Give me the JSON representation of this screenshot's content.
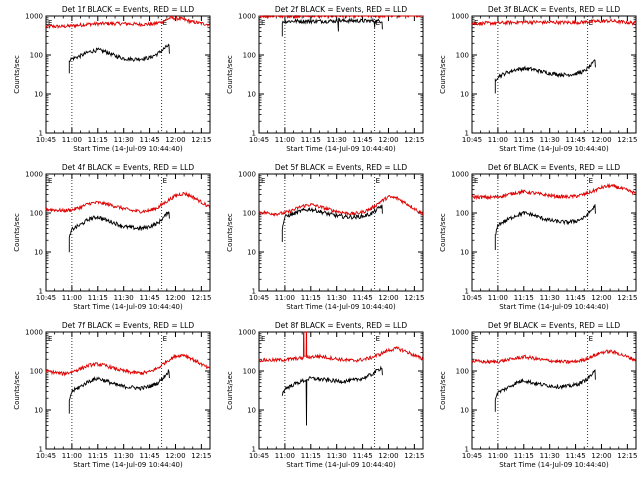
{
  "figure": {
    "colors": {
      "events": "#000000",
      "lld": "#e00000",
      "background": "#ffffff",
      "axes": "#000000"
    },
    "x_tick_labels": [
      "10:45",
      "11:00",
      "11:15",
      "11:30",
      "11:45",
      "12:00",
      "12:15"
    ],
    "y_tick_labels": [
      "1",
      "10",
      "100",
      "1000"
    ],
    "xlabel": "Start Time (14-Jul-09 10:44:40)",
    "ylabel": "Counts/sec",
    "marker_text": "E"
  },
  "chart_data": [
    {
      "type": "line",
      "title": "Det 1f BLACK = Events, RED = LLD",
      "xlabel": "Start Time (14-Jul-09 10:44:40)",
      "ylabel": "Counts/sec",
      "x_range_minutes_from_10_45": [
        0,
        95
      ],
      "y_log": true,
      "ylim": [
        1,
        1000
      ],
      "events_start_min": 13.5,
      "events_end_min": 71.5,
      "marker_lines_min": [
        15,
        67
      ],
      "series": [
        {
          "color": "red",
          "x": [
            0,
            10,
            15,
            25,
            35,
            45,
            55,
            62,
            67,
            72,
            78,
            85,
            95
          ],
          "y": [
            540,
            540,
            560,
            620,
            640,
            640,
            610,
            620,
            700,
            900,
            850,
            700,
            600
          ]
        },
        {
          "color": "black",
          "x": [
            13.5,
            15,
            20,
            25,
            30,
            35,
            40,
            45,
            50,
            55,
            60,
            65,
            70,
            71.5
          ],
          "y": [
            75,
            80,
            95,
            120,
            135,
            120,
            95,
            82,
            78,
            80,
            85,
            110,
            165,
            180
          ]
        }
      ]
    },
    {
      "type": "line",
      "title": "Det 2f BLACK = Events, RED = LLD",
      "xlabel": "Start Time (14-Jul-09 10:44:40)",
      "ylabel": "Counts/sec",
      "x_range_minutes_from_10_45": [
        0,
        95
      ],
      "y_log": true,
      "ylim": [
        1,
        1000
      ],
      "events_start_min": 13.5,
      "events_end_min": 71.5,
      "marker_lines_min": [
        15,
        67
      ],
      "series": [
        {
          "color": "red",
          "x": [
            0,
            20,
            40,
            60,
            80,
            95
          ],
          "y": [
            1000,
            1000,
            1010,
            1010,
            1020,
            1050
          ]
        },
        {
          "color": "black",
          "x": [
            13.5,
            20,
            30,
            40,
            50,
            60,
            70,
            71.5
          ],
          "y": [
            720,
            740,
            730,
            740,
            760,
            750,
            740,
            760
          ]
        }
      ]
    },
    {
      "type": "line",
      "title": "Det 3f BLACK = Events, RED = LLD",
      "xlabel": "Start Time (14-Jul-09 10:44:40)",
      "ylabel": "Counts/sec",
      "x_range_minutes_from_10_45": [
        0,
        95
      ],
      "y_log": true,
      "ylim": [
        1,
        1000
      ],
      "events_start_min": 13.5,
      "events_end_min": 71.5,
      "marker_lines_min": [
        15,
        67
      ],
      "series": [
        {
          "color": "red",
          "x": [
            0,
            15,
            30,
            45,
            60,
            70,
            80,
            95
          ],
          "y": [
            640,
            660,
            700,
            690,
            680,
            720,
            750,
            650
          ]
        },
        {
          "color": "black",
          "x": [
            13.5,
            15,
            20,
            25,
            30,
            35,
            40,
            45,
            50,
            55,
            60,
            65,
            70,
            71.5
          ],
          "y": [
            23,
            28,
            35,
            42,
            45,
            43,
            38,
            34,
            32,
            31,
            33,
            38,
            60,
            80
          ]
        }
      ]
    },
    {
      "type": "line",
      "title": "Det 4f BLACK = Events, RED = LLD",
      "xlabel": "Start Time (14-Jul-09 10:44:40)",
      "ylabel": "Counts/sec",
      "x_range_minutes_from_10_45": [
        0,
        95
      ],
      "y_log": true,
      "ylim": [
        1,
        1000
      ],
      "events_start_min": 13.5,
      "events_end_min": 71.5,
      "marker_lines_min": [
        15,
        67
      ],
      "series": [
        {
          "color": "red",
          "x": [
            0,
            10,
            15,
            20,
            25,
            30,
            35,
            40,
            45,
            50,
            55,
            60,
            65,
            70,
            75,
            80,
            85,
            90,
            95
          ],
          "y": [
            125,
            115,
            120,
            140,
            175,
            185,
            170,
            150,
            130,
            115,
            110,
            115,
            140,
            200,
            280,
            320,
            260,
            190,
            140
          ]
        },
        {
          "color": "black",
          "x": [
            13.5,
            15,
            20,
            25,
            30,
            35,
            40,
            45,
            50,
            55,
            60,
            65,
            70,
            71.5
          ],
          "y": [
            22,
            38,
            50,
            70,
            80,
            65,
            55,
            45,
            42,
            40,
            45,
            55,
            95,
            120
          ]
        }
      ]
    },
    {
      "type": "line",
      "title": "Det 5f BLACK = Events, RED = LLD",
      "xlabel": "Start Time (14-Jul-09 10:44:40)",
      "ylabel": "Counts/sec",
      "x_range_minutes_from_10_45": [
        0,
        95
      ],
      "y_log": true,
      "ylim": [
        1,
        1000
      ],
      "events_start_min": 13.5,
      "events_end_min": 71.5,
      "marker_lines_min": [
        15,
        67
      ],
      "series": [
        {
          "color": "red",
          "x": [
            0,
            10,
            15,
            20,
            25,
            30,
            35,
            40,
            45,
            50,
            55,
            60,
            65,
            70,
            75,
            80,
            85,
            90,
            95
          ],
          "y": [
            105,
            95,
            100,
            120,
            150,
            165,
            145,
            125,
            110,
            100,
            95,
            105,
            130,
            190,
            260,
            240,
            180,
            130,
            95
          ]
        },
        {
          "color": "black",
          "x": [
            13.5,
            15,
            20,
            25,
            30,
            35,
            40,
            45,
            50,
            55,
            60,
            65,
            70,
            71.5
          ],
          "y": [
            40,
            80,
            95,
            115,
            125,
            110,
            95,
            85,
            80,
            78,
            82,
            95,
            140,
            160
          ]
        }
      ]
    },
    {
      "type": "line",
      "title": "Det 6f BLACK = Events, RED = LLD",
      "xlabel": "Start Time (14-Jul-09 10:44:40)",
      "ylabel": "Counts/sec",
      "x_range_minutes_from_10_45": [
        0,
        95
      ],
      "y_log": true,
      "ylim": [
        1,
        1000
      ],
      "events_start_min": 13.5,
      "events_end_min": 71.5,
      "marker_lines_min": [
        15,
        67
      ],
      "series": [
        {
          "color": "red",
          "x": [
            0,
            10,
            15,
            20,
            25,
            30,
            35,
            40,
            45,
            50,
            55,
            60,
            65,
            70,
            75,
            80,
            85,
            90,
            95
          ],
          "y": [
            260,
            250,
            260,
            290,
            330,
            350,
            330,
            300,
            280,
            265,
            260,
            270,
            300,
            360,
            450,
            500,
            450,
            380,
            320
          ]
        },
        {
          "color": "black",
          "x": [
            13.5,
            15,
            20,
            25,
            30,
            35,
            40,
            45,
            50,
            55,
            60,
            65,
            70,
            71.5
          ],
          "y": [
            25,
            50,
            65,
            85,
            100,
            90,
            75,
            65,
            60,
            58,
            62,
            75,
            130,
            160
          ]
        }
      ]
    },
    {
      "type": "line",
      "title": "Det 7f BLACK = Events, RED = LLD",
      "xlabel": "Start Time (14-Jul-09 10:44:40)",
      "ylabel": "Counts/sec",
      "x_range_minutes_from_10_45": [
        0,
        95
      ],
      "y_log": true,
      "ylim": [
        1,
        1000
      ],
      "events_start_min": 13.5,
      "events_end_min": 71.5,
      "marker_lines_min": [
        15,
        67
      ],
      "series": [
        {
          "color": "red",
          "x": [
            0,
            10,
            15,
            20,
            25,
            30,
            35,
            40,
            45,
            50,
            55,
            60,
            65,
            70,
            75,
            80,
            85,
            90,
            95
          ],
          "y": [
            100,
            85,
            95,
            115,
            140,
            150,
            135,
            115,
            100,
            92,
            88,
            95,
            120,
            180,
            240,
            260,
            200,
            150,
            110
          ]
        },
        {
          "color": "black",
          "x": [
            13.5,
            15,
            20,
            25,
            30,
            35,
            40,
            45,
            50,
            55,
            60,
            65,
            70,
            71.5
          ],
          "y": [
            18,
            30,
            40,
            55,
            65,
            55,
            45,
            40,
            38,
            36,
            40,
            50,
            85,
            110
          ]
        }
      ]
    },
    {
      "type": "line",
      "title": "Det 8f BLACK = Events, RED = LLD",
      "xlabel": "Start Time (14-Jul-09 10:44:40)",
      "ylabel": "Counts/sec",
      "x_range_minutes_from_10_45": [
        0,
        95
      ],
      "y_log": true,
      "ylim": [
        1,
        1000
      ],
      "events_start_min": 13.5,
      "events_end_min": 71.5,
      "marker_lines_min": [
        15,
        67
      ],
      "spike_min": 26,
      "dip_min": 27.5,
      "series": [
        {
          "color": "red",
          "x": [
            0,
            10,
            15,
            20,
            25,
            30,
            35,
            40,
            45,
            50,
            55,
            60,
            65,
            70,
            75,
            80,
            85,
            90,
            95
          ],
          "y": [
            190,
            190,
            195,
            205,
            215,
            230,
            240,
            220,
            205,
            190,
            185,
            195,
            220,
            270,
            340,
            380,
            320,
            250,
            200
          ]
        },
        {
          "color": "black",
          "x": [
            13.5,
            15,
            20,
            25,
            30,
            35,
            40,
            45,
            50,
            55,
            60,
            65,
            70,
            71.5
          ],
          "y": [
            25,
            35,
            45,
            55,
            65,
            62,
            58,
            55,
            55,
            58,
            65,
            80,
            115,
            130
          ]
        }
      ]
    },
    {
      "type": "line",
      "title": "Det 9f BLACK = Events, RED = LLD",
      "xlabel": "Start Time (14-Jul-09 10:44:40)",
      "ylabel": "Counts/sec",
      "x_range_minutes_from_10_45": [
        0,
        95
      ],
      "y_log": true,
      "ylim": [
        1,
        1000
      ],
      "events_start_min": 13.5,
      "events_end_min": 71.5,
      "marker_lines_min": [
        15,
        67
      ],
      "series": [
        {
          "color": "red",
          "x": [
            0,
            10,
            15,
            20,
            25,
            30,
            35,
            40,
            45,
            50,
            55,
            60,
            65,
            70,
            75,
            80,
            85,
            90,
            95
          ],
          "y": [
            180,
            170,
            175,
            190,
            210,
            230,
            215,
            195,
            185,
            175,
            170,
            175,
            195,
            240,
            300,
            320,
            280,
            230,
            190
          ]
        },
        {
          "color": "black",
          "x": [
            13.5,
            15,
            20,
            25,
            30,
            35,
            40,
            45,
            50,
            55,
            60,
            65,
            70,
            71.5
          ],
          "y": [
            20,
            28,
            36,
            48,
            58,
            50,
            45,
            42,
            40,
            40,
            44,
            55,
            85,
            100
          ]
        }
      ]
    }
  ]
}
